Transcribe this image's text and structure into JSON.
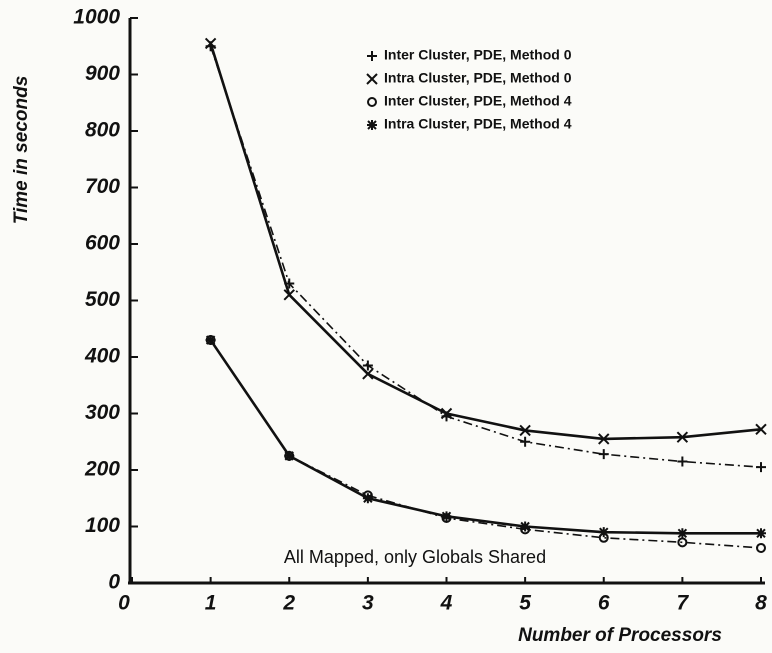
{
  "chart_data": {
    "type": "line",
    "xlabel": "Number of Processors",
    "ylabel": "Time in seconds",
    "annotation": "All Mapped, only Globals Shared",
    "x": [
      1,
      2,
      3,
      4,
      5,
      6,
      7,
      8
    ],
    "series": [
      {
        "name": "Inter Cluster, PDE, Method 0",
        "color": "#111111",
        "style": "dashdot",
        "marker": "plus",
        "values": [
          950,
          530,
          385,
          295,
          250,
          228,
          215,
          205
        ]
      },
      {
        "name": "Intra Cluster, PDE, Method 0",
        "color": "#111111",
        "style": "solid",
        "marker": "x",
        "values": [
          955,
          510,
          370,
          300,
          270,
          255,
          258,
          272
        ]
      },
      {
        "name": "Inter Cluster, PDE, Method 4",
        "color": "#111111",
        "style": "dashdot",
        "marker": "circle",
        "values": [
          430,
          225,
          155,
          115,
          95,
          80,
          72,
          62
        ]
      },
      {
        "name": "Intra Cluster, PDE, Method 4",
        "color": "#111111",
        "style": "solid",
        "marker": "star",
        "values": [
          430,
          225,
          150,
          118,
          100,
          90,
          88,
          88
        ]
      }
    ],
    "xlim": [
      0,
      8
    ],
    "xticks": [
      0,
      1,
      2,
      3,
      4,
      5,
      6,
      7,
      8
    ],
    "ylim": [
      0,
      1000
    ],
    "yticks": [
      0,
      100,
      200,
      300,
      400,
      500,
      600,
      700,
      800,
      900,
      1000
    ],
    "legend": "upper right",
    "grid": false
  }
}
